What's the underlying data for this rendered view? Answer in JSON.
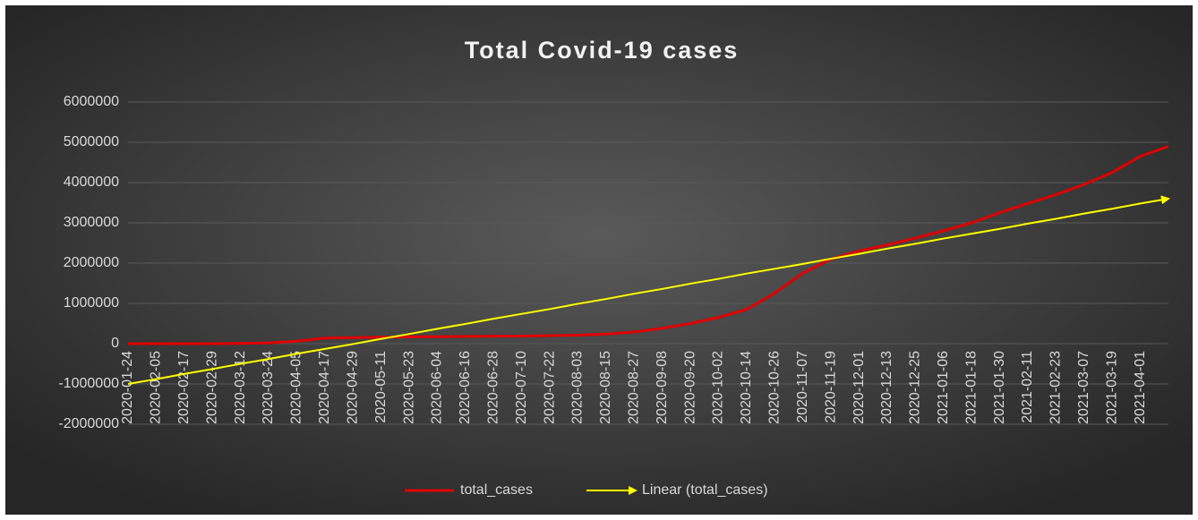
{
  "chart_data": {
    "type": "line",
    "title": "Total Covid-19 cases",
    "categories": [
      "2020-01-24",
      "2020-02-05",
      "2020-02-17",
      "2020-02-29",
      "2020-03-12",
      "2020-03-24",
      "2020-04-05",
      "2020-04-17",
      "2020-04-29",
      "2020-05-11",
      "2020-05-23",
      "2020-06-04",
      "2020-06-16",
      "2020-06-28",
      "2020-07-10",
      "2020-07-22",
      "2020-08-03",
      "2020-08-15",
      "2020-08-27",
      "2020-09-08",
      "2020-09-20",
      "2020-10-02",
      "2020-10-14",
      "2020-10-26",
      "2020-11-07",
      "2020-11-19",
      "2020-12-01",
      "2020-12-13",
      "2020-12-25",
      "2021-01-06",
      "2021-01-18",
      "2021-01-30",
      "2021-02-11",
      "2021-02-23",
      "2021-03-07",
      "2021-03-19",
      "2021-04-01",
      null
    ],
    "series": [
      {
        "name": "total_cases",
        "color": "#e00000",
        "values": [
          0,
          0,
          0,
          0,
          5000,
          20000,
          60000,
          140000,
          150000,
          160000,
          170000,
          175000,
          180000,
          185000,
          190000,
          200000,
          210000,
          240000,
          290000,
          380000,
          500000,
          650000,
          850000,
          1250000,
          1750000,
          2100000,
          2300000,
          2450000,
          2620000,
          2800000,
          3000000,
          3250000,
          3480000,
          3700000,
          3950000,
          4250000,
          4650000,
          4900000
        ]
      },
      {
        "name": "Linear (total_cases)",
        "color": "#ffff00",
        "values": [
          -1000000,
          -880000,
          -750000,
          -630000,
          -500000,
          -380000,
          -250000,
          -130000,
          -10000,
          120000,
          240000,
          370000,
          490000,
          620000,
          740000,
          860000,
          990000,
          1110000,
          1240000,
          1360000,
          1490000,
          1610000,
          1740000,
          1860000,
          1980000,
          2110000,
          2230000,
          2360000,
          2480000,
          2610000,
          2730000,
          2850000,
          2980000,
          3100000,
          3230000,
          3350000,
          3480000,
          3600000
        ]
      }
    ],
    "ylim": [
      -2000000,
      6000000
    ],
    "yticks": [
      -2000000,
      -1000000,
      0,
      1000000,
      2000000,
      3000000,
      4000000,
      5000000,
      6000000
    ],
    "grid": true,
    "legend": "bottom"
  }
}
